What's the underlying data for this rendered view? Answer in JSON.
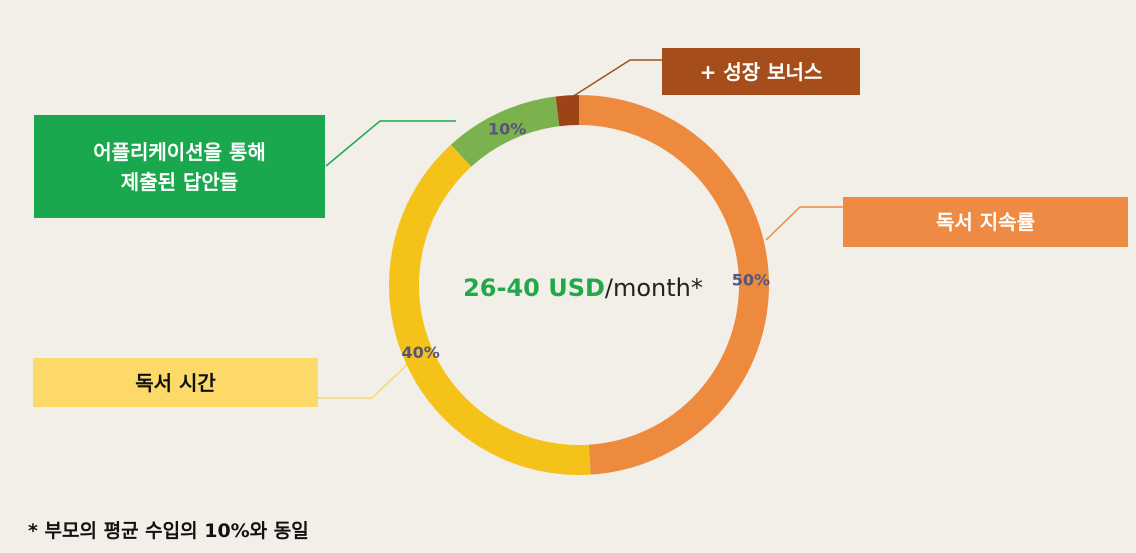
{
  "chart_data": {
    "type": "donut",
    "categories": [
      "독서 지속률",
      "독서 시간",
      "어플리케이션을 통해\n제출된 답안들",
      "+   성장 보너스"
    ],
    "values": [
      50,
      40,
      10,
      2
    ],
    "value_labels": [
      "50%",
      "40%",
      "10%",
      null
    ],
    "colors": [
      "#ee8a3e",
      "#f5c21a",
      "#7cb24e",
      "#9c4417"
    ],
    "label_colors": [
      "#ed8b45",
      "#fcd968",
      "#1aa84f",
      "#a64d1c"
    ],
    "center_highlight": "26-40 USD",
    "center_text": "/month*",
    "footnote": "* 부모의 평균 수입의 10%와 동일"
  }
}
